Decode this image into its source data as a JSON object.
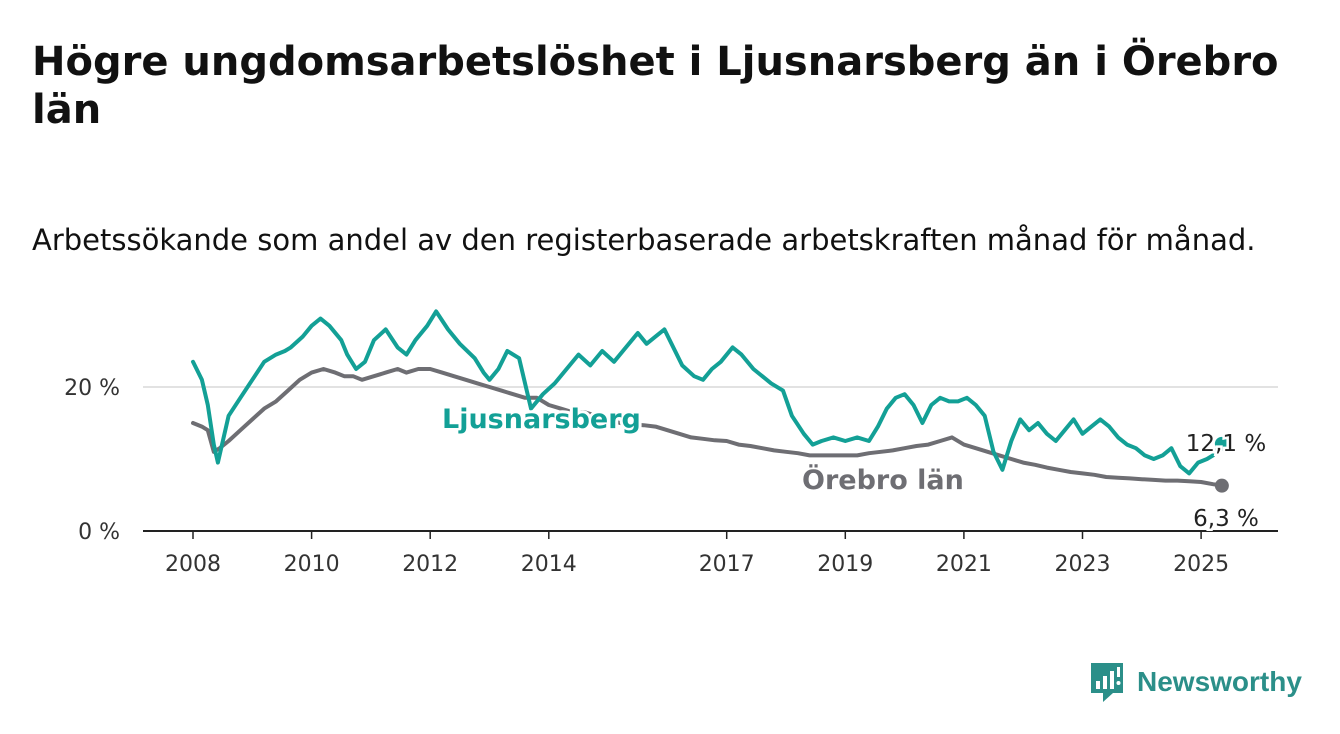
{
  "header": {
    "title": "Högre ungdomsarbetslöshet i Ljusnarsberg än i Örebro län",
    "subtitle": "Arbetssökande som andel av den registerbaserade arbetskraften månad för månad."
  },
  "brand": {
    "name": "Newsworthy",
    "color": "#2b8f89"
  },
  "chart_data": {
    "type": "line",
    "title": "Högre ungdomsarbetslöshet i Ljusnarsberg än i Örebro län",
    "subtitle": "Arbetssökande som andel av den registerbaserade arbetskraften månad för månad.",
    "xlabel": "",
    "ylabel": "",
    "xlim": [
      2008,
      2026.2
    ],
    "ylim": [
      0,
      30
    ],
    "x_ticks": [
      "2008",
      "2010",
      "2012",
      "2014",
      "2017",
      "2019",
      "2021",
      "2023",
      "2025"
    ],
    "y_ticks": [
      {
        "value": 0,
        "label": "0 %"
      },
      {
        "value": 20,
        "label": "20 %"
      }
    ],
    "grid": true,
    "legend": "direct labels on lines",
    "series": [
      {
        "name": "Ljusnarsberg",
        "color": "#13a096",
        "x": [
          2008.0,
          2008.15,
          2008.25,
          2008.35,
          2008.42,
          2008.6,
          2008.8,
          2009.0,
          2009.2,
          2009.4,
          2009.55,
          2009.65,
          2009.85,
          2010.0,
          2010.15,
          2010.3,
          2010.5,
          2010.6,
          2010.75,
          2010.9,
          2011.05,
          2011.25,
          2011.45,
          2011.6,
          2011.75,
          2011.95,
          2012.1,
          2012.3,
          2012.5,
          2012.75,
          2012.9,
          2013.0,
          2013.15,
          2013.3,
          2013.5,
          2013.7,
          2013.9,
          2014.1,
          2014.3,
          2014.5,
          2014.7,
          2014.9,
          2015.1,
          2015.3,
          2015.5,
          2015.65,
          2015.8,
          2015.95,
          2016.1,
          2016.25,
          2016.45,
          2016.6,
          2016.75,
          2016.9,
          2017.1,
          2017.25,
          2017.45,
          2017.6,
          2017.75,
          2017.95,
          2018.1,
          2018.3,
          2018.45,
          2018.6,
          2018.8,
          2019.0,
          2019.2,
          2019.4,
          2019.55,
          2019.7,
          2019.85,
          2020.0,
          2020.15,
          2020.3,
          2020.45,
          2020.6,
          2020.75,
          2020.9,
          2021.05,
          2021.2,
          2021.35,
          2021.5,
          2021.65,
          2021.8,
          2021.95,
          2022.1,
          2022.25,
          2022.4,
          2022.55,
          2022.7,
          2022.85,
          2023.0,
          2023.15,
          2023.3,
          2023.45,
          2023.6,
          2023.75,
          2023.9,
          2024.05,
          2024.2,
          2024.35,
          2024.5,
          2024.65,
          2024.8,
          2024.95,
          2025.1,
          2025.2,
          2025.28,
          2025.35
        ],
        "values": [
          23.5,
          21.0,
          17.5,
          12.0,
          9.5,
          16.0,
          18.5,
          21.0,
          23.5,
          24.5,
          25.0,
          25.5,
          27.0,
          28.5,
          29.5,
          28.5,
          26.5,
          24.5,
          22.5,
          23.5,
          26.5,
          28.0,
          25.5,
          24.5,
          26.5,
          28.5,
          30.5,
          28.0,
          26.0,
          24.0,
          22.0,
          21.0,
          22.5,
          25.0,
          24.0,
          17.0,
          19.0,
          20.5,
          22.5,
          24.5,
          23.0,
          25.0,
          23.5,
          25.5,
          27.5,
          26.0,
          27.0,
          28.0,
          25.5,
          23.0,
          21.5,
          21.0,
          22.5,
          23.5,
          25.5,
          24.5,
          22.5,
          21.5,
          20.5,
          19.5,
          16.0,
          13.5,
          12.0,
          12.5,
          13.0,
          12.5,
          13.0,
          12.5,
          14.5,
          17.0,
          18.5,
          19.0,
          17.5,
          15.0,
          17.5,
          18.5,
          18.0,
          18.0,
          18.5,
          17.5,
          16.0,
          11.0,
          8.5,
          12.5,
          15.5,
          14.0,
          15.0,
          13.5,
          12.5,
          14.0,
          15.5,
          13.5,
          14.5,
          15.5,
          14.5,
          13.0,
          12.0,
          11.5,
          10.5,
          10.0,
          10.5,
          11.5,
          9.0,
          8.0,
          9.5,
          10.0,
          10.5,
          11.5,
          12.1
        ]
      },
      {
        "name": "Örebro län",
        "color": "#6e6e73",
        "x": [
          2008.0,
          2008.15,
          2008.25,
          2008.35,
          2008.45,
          2008.6,
          2008.8,
          2009.0,
          2009.2,
          2009.4,
          2009.6,
          2009.8,
          2010.0,
          2010.2,
          2010.4,
          2010.55,
          2010.7,
          2010.85,
          2011.05,
          2011.25,
          2011.45,
          2011.6,
          2011.8,
          2012.0,
          2012.2,
          2012.4,
          2012.6,
          2012.8,
          2013.0,
          2013.2,
          2013.4,
          2013.6,
          2013.8,
          2014.0,
          2014.2,
          2014.4,
          2014.6,
          2014.8,
          2015.0,
          2015.2,
          2015.4,
          2015.6,
          2015.8,
          2016.0,
          2016.2,
          2016.4,
          2016.6,
          2016.8,
          2017.0,
          2017.2,
          2017.4,
          2017.6,
          2017.8,
          2018.0,
          2018.2,
          2018.4,
          2018.6,
          2018.8,
          2019.0,
          2019.2,
          2019.4,
          2019.6,
          2019.8,
          2020.0,
          2020.2,
          2020.4,
          2020.6,
          2020.8,
          2021.0,
          2021.2,
          2021.4,
          2021.6,
          2021.8,
          2022.0,
          2022.2,
          2022.4,
          2022.6,
          2022.8,
          2023.0,
          2023.2,
          2023.4,
          2023.6,
          2023.8,
          2024.0,
          2024.2,
          2024.4,
          2024.6,
          2024.8,
          2025.0,
          2025.2,
          2025.35
        ],
        "values": [
          15.0,
          14.5,
          14.0,
          11.0,
          11.5,
          12.5,
          14.0,
          15.5,
          17.0,
          18.0,
          19.5,
          21.0,
          22.0,
          22.5,
          22.0,
          21.5,
          21.5,
          21.0,
          21.5,
          22.0,
          22.5,
          22.0,
          22.5,
          22.5,
          22.0,
          21.5,
          21.0,
          20.5,
          20.0,
          19.5,
          19.0,
          18.5,
          18.5,
          17.5,
          17.0,
          16.5,
          16.5,
          16.0,
          15.5,
          15.0,
          14.8,
          14.7,
          14.5,
          14.0,
          13.5,
          13.0,
          12.8,
          12.6,
          12.5,
          12.0,
          11.8,
          11.5,
          11.2,
          11.0,
          10.8,
          10.5,
          10.5,
          10.5,
          10.5,
          10.5,
          10.8,
          11.0,
          11.2,
          11.5,
          11.8,
          12.0,
          12.5,
          13.0,
          12.0,
          11.5,
          11.0,
          10.5,
          10.0,
          9.5,
          9.2,
          8.8,
          8.5,
          8.2,
          8.0,
          7.8,
          7.5,
          7.4,
          7.3,
          7.2,
          7.1,
          7.0,
          7.0,
          6.9,
          6.8,
          6.5,
          6.3
        ]
      }
    ],
    "annotations": [
      {
        "series": "Ljusnarsberg",
        "label": "12,1 %"
      },
      {
        "series": "Örebro län",
        "label": "6,3 %"
      }
    ]
  }
}
